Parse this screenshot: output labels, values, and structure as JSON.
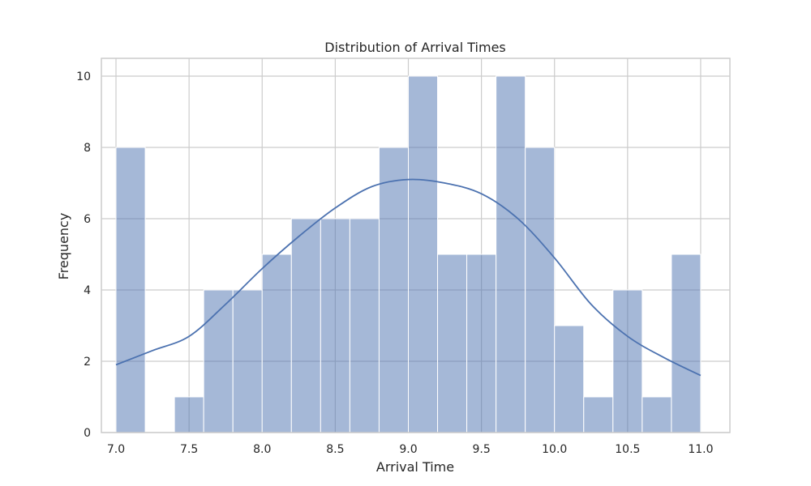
{
  "chart_data": {
    "type": "bar",
    "chart_subtype": "histogram_with_kde",
    "title": "Distribution of Arrival Times",
    "xlabel": "Arrival Time",
    "ylabel": "Frequency",
    "xlim": [
      6.9,
      11.2
    ],
    "ylim": [
      0,
      10.5
    ],
    "x_ticks": [
      7.0,
      7.5,
      8.0,
      8.5,
      9.0,
      9.5,
      10.0,
      10.5,
      11.0
    ],
    "y_ticks": [
      0,
      2,
      4,
      6,
      8,
      10
    ],
    "grid": true,
    "bin_edges": [
      7.0,
      7.2,
      7.4,
      7.6,
      7.8,
      8.0,
      8.2,
      8.4,
      8.6,
      8.8,
      9.0,
      9.2,
      9.4,
      9.6,
      9.8,
      10.0,
      10.2,
      10.4,
      10.6,
      10.8,
      11.0
    ],
    "counts": [
      8,
      0,
      1,
      4,
      4,
      5,
      6,
      6,
      6,
      8,
      10,
      5,
      5,
      10,
      8,
      3,
      1,
      4,
      1,
      5
    ],
    "kde": {
      "x": [
        7.0,
        7.25,
        7.5,
        7.75,
        8.0,
        8.25,
        8.5,
        8.75,
        9.0,
        9.25,
        9.5,
        9.75,
        10.0,
        10.25,
        10.5,
        10.75,
        11.0
      ],
      "y": [
        1.9,
        2.3,
        2.7,
        3.6,
        4.6,
        5.5,
        6.3,
        6.9,
        7.1,
        7.0,
        6.7,
        6.0,
        4.9,
        3.6,
        2.7,
        2.1,
        1.6
      ]
    },
    "colors": {
      "bar_fill": "#4c72b0",
      "bar_opacity": 0.5,
      "kde_line": "#4c72b0"
    }
  }
}
